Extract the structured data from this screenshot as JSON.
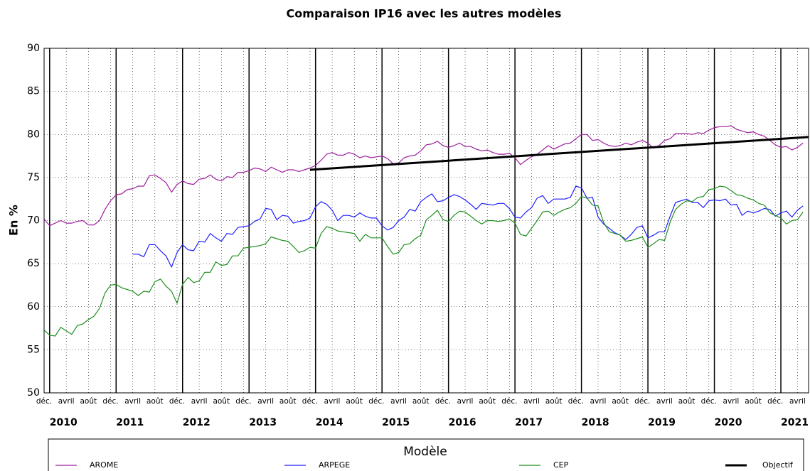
{
  "chart_data": {
    "type": "line",
    "title": "Comparaison IP16 avec les autres modèles",
    "y_label": "En %",
    "legend_title": "Modèle",
    "x": [
      "2009-12",
      "2010-01",
      "2010-02",
      "2010-03",
      "2010-04",
      "2010-05",
      "2010-06",
      "2010-07",
      "2010-08",
      "2010-09",
      "2010-10",
      "2010-11",
      "2010-12",
      "2011-01",
      "2011-02",
      "2011-03",
      "2011-04",
      "2011-05",
      "2011-06",
      "2011-07",
      "2011-08",
      "2011-09",
      "2011-10",
      "2011-11",
      "2011-12",
      "2012-01",
      "2012-02",
      "2012-03",
      "2012-04",
      "2012-05",
      "2012-06",
      "2012-07",
      "2012-08",
      "2012-09",
      "2012-10",
      "2012-11",
      "2012-12",
      "2013-01",
      "2013-02",
      "2013-03",
      "2013-04",
      "2013-05",
      "2013-06",
      "2013-07",
      "2013-08",
      "2013-09",
      "2013-10",
      "2013-11",
      "2013-12",
      "2014-01",
      "2014-02",
      "2014-03",
      "2014-04",
      "2014-05",
      "2014-06",
      "2014-07",
      "2014-08",
      "2014-09",
      "2014-10",
      "2014-11",
      "2014-12",
      "2015-01",
      "2015-02",
      "2015-03",
      "2015-04",
      "2015-05",
      "2015-06",
      "2015-07",
      "2015-08",
      "2015-09",
      "2015-10",
      "2015-11",
      "2015-12",
      "2016-01",
      "2016-02",
      "2016-03",
      "2016-04",
      "2016-05",
      "2016-06",
      "2016-07",
      "2016-08",
      "2016-09",
      "2016-10",
      "2016-11",
      "2016-12",
      "2017-01",
      "2017-02",
      "2017-03",
      "2017-04",
      "2017-05",
      "2017-06",
      "2017-07",
      "2017-08",
      "2017-09",
      "2017-10",
      "2017-11",
      "2017-12",
      "2018-01",
      "2018-02",
      "2018-03",
      "2018-04",
      "2018-05",
      "2018-06",
      "2018-07",
      "2018-08",
      "2018-09",
      "2018-10",
      "2018-11",
      "2018-12",
      "2019-01",
      "2019-02",
      "2019-03",
      "2019-04",
      "2019-05",
      "2019-06",
      "2019-07",
      "2019-08",
      "2019-09",
      "2019-10",
      "2019-11",
      "2019-12",
      "2020-01",
      "2020-02",
      "2020-03",
      "2020-04",
      "2020-05",
      "2020-06",
      "2020-07",
      "2020-08",
      "2020-09",
      "2020-10",
      "2020-11",
      "2020-12",
      "2021-01",
      "2021-02",
      "2021-03",
      "2021-04",
      "2021-05"
    ],
    "series": [
      {
        "name": "AROME",
        "color": "#9e1f9e",
        "width": 1.2,
        "values": [
          70.2,
          69.4,
          69.7,
          70.0,
          69.7,
          69.7,
          69.9,
          70.0,
          69.5,
          69.5,
          70.0,
          71.3,
          72.3,
          73.0,
          73.1,
          73.6,
          73.7,
          74.0,
          74.0,
          75.2,
          75.3,
          74.9,
          74.4,
          73.3,
          74.2,
          74.6,
          74.3,
          74.2,
          74.8,
          74.9,
          75.3,
          74.8,
          74.6,
          75.1,
          75.0,
          75.6,
          75.6,
          75.8,
          76.1,
          76.0,
          75.7,
          76.2,
          75.9,
          75.6,
          75.9,
          75.9,
          75.7,
          75.9,
          76.1,
          76.4,
          77.0,
          77.7,
          77.9,
          77.6,
          77.6,
          77.9,
          77.7,
          77.3,
          77.5,
          77.3,
          77.4,
          77.5,
          77.2,
          76.6,
          76.7,
          77.3,
          77.5,
          77.6,
          78.1,
          78.8,
          78.9,
          79.2,
          78.7,
          78.5,
          78.7,
          79.0,
          78.6,
          78.6,
          78.3,
          78.1,
          78.2,
          77.9,
          77.7,
          77.7,
          77.8,
          77.3,
          76.5,
          77.0,
          77.4,
          77.7,
          78.2,
          78.7,
          78.3,
          78.6,
          78.9,
          79.0,
          79.5,
          80.0,
          80.0,
          79.3,
          79.4,
          79.0,
          78.7,
          78.6,
          78.7,
          79.0,
          78.8,
          79.1,
          79.3,
          79.0,
          78.4,
          78.7,
          79.3,
          79.5,
          80.1,
          80.1,
          80.1,
          80.0,
          80.2,
          80.1,
          80.5,
          80.8,
          80.9,
          80.9,
          81.0,
          80.6,
          80.4,
          80.2,
          80.3,
          80.0,
          79.8,
          79.3,
          78.8,
          78.5,
          78.6,
          78.2,
          78.5,
          79.0
        ]
      },
      {
        "name": "ARPEGE",
        "color": "#1f1fff",
        "width": 1.2,
        "values": [
          null,
          null,
          null,
          null,
          null,
          null,
          null,
          null,
          null,
          null,
          null,
          null,
          null,
          null,
          null,
          null,
          66.1,
          66.1,
          65.8,
          67.2,
          67.2,
          66.5,
          65.9,
          64.6,
          66.3,
          67.2,
          66.6,
          66.5,
          67.6,
          67.5,
          68.5,
          68.0,
          67.6,
          68.5,
          68.4,
          69.2,
          69.3,
          69.4,
          69.9,
          70.2,
          71.4,
          71.3,
          70.1,
          70.6,
          70.5,
          69.7,
          69.9,
          70.0,
          70.3,
          71.6,
          72.2,
          71.9,
          71.2,
          70.0,
          70.6,
          70.6,
          70.4,
          70.9,
          70.5,
          70.3,
          70.3,
          69.4,
          68.9,
          69.2,
          70.0,
          70.4,
          71.3,
          71.1,
          72.2,
          72.7,
          73.1,
          72.2,
          72.3,
          72.7,
          73.0,
          72.8,
          72.4,
          71.9,
          71.3,
          72.0,
          71.9,
          71.8,
          72.0,
          72.0,
          71.4,
          70.4,
          70.3,
          71.0,
          71.5,
          72.6,
          72.9,
          72.0,
          72.5,
          72.5,
          72.5,
          72.7,
          74.0,
          73.8,
          72.6,
          72.7,
          70.4,
          69.6,
          69.1,
          68.6,
          68.3,
          67.8,
          68.4,
          69.2,
          69.4,
          68.0,
          68.3,
          68.7,
          68.7,
          70.5,
          72.1,
          72.3,
          72.5,
          72.1,
          72.1,
          71.5,
          72.3,
          72.4,
          72.3,
          72.5,
          71.8,
          71.9,
          70.6,
          71.1,
          70.9,
          71.1,
          71.4,
          71.3,
          70.5,
          70.9,
          71.1,
          70.4,
          71.2,
          71.7
        ]
      },
      {
        "name": "CEP",
        "color": "#1f8f1f",
        "width": 1.2,
        "values": [
          57.3,
          56.7,
          56.6,
          57.6,
          57.2,
          56.8,
          57.8,
          58.0,
          58.5,
          58.9,
          59.8,
          61.6,
          62.5,
          62.6,
          62.2,
          62.0,
          61.8,
          61.3,
          61.8,
          61.7,
          62.9,
          63.2,
          62.4,
          61.8,
          60.4,
          62.6,
          63.4,
          62.8,
          63.0,
          64.0,
          64.0,
          65.2,
          64.8,
          64.9,
          65.9,
          65.9,
          66.8,
          66.9,
          67.0,
          67.1,
          67.3,
          68.1,
          67.9,
          67.7,
          67.6,
          67.0,
          66.3,
          66.5,
          66.9,
          66.8,
          68.5,
          69.3,
          69.1,
          68.8,
          68.7,
          68.6,
          68.5,
          67.6,
          68.4,
          68.0,
          68.0,
          68.0,
          67.0,
          66.1,
          66.3,
          67.2,
          67.3,
          67.9,
          68.3,
          70.1,
          70.6,
          71.2,
          70.1,
          69.9,
          70.6,
          71.1,
          71.0,
          70.5,
          70.0,
          69.6,
          70.0,
          70.0,
          69.9,
          70.0,
          70.2,
          69.7,
          68.4,
          68.2,
          69.1,
          70.0,
          71.0,
          71.1,
          70.6,
          71.0,
          71.3,
          71.5,
          72.0,
          72.8,
          72.6,
          71.8,
          71.7,
          69.8,
          68.7,
          68.5,
          68.3,
          67.6,
          67.7,
          67.9,
          68.1,
          66.9,
          67.3,
          67.8,
          67.7,
          69.8,
          71.3,
          71.9,
          72.3,
          72.2,
          72.7,
          72.8,
          73.6,
          73.7,
          74.0,
          73.9,
          73.5,
          73.0,
          72.9,
          72.6,
          72.4,
          72.0,
          71.8,
          70.9,
          70.6,
          70.3,
          69.6,
          70.0,
          70.1,
          71.0
        ]
      },
      {
        "name": "Objectif",
        "color": "#000000",
        "width": 3,
        "x": [
          "2013-12",
          "2021-06"
        ],
        "values": [
          75.9,
          79.7
        ]
      }
    ],
    "xlim": [
      "2009-12",
      "2021-06"
    ],
    "xticks": [
      {
        "value": "2009-12",
        "label": "déc."
      },
      {
        "value": "2010-04",
        "label": "avril"
      },
      {
        "value": "2010-08",
        "label": "août"
      },
      {
        "value": "2010-12",
        "label": "déc."
      },
      {
        "value": "2011-04",
        "label": "avril"
      },
      {
        "value": "2011-08",
        "label": "août"
      },
      {
        "value": "2011-12",
        "label": "déc."
      },
      {
        "value": "2012-04",
        "label": "avril"
      },
      {
        "value": "2012-08",
        "label": "août"
      },
      {
        "value": "2012-12",
        "label": "déc."
      },
      {
        "value": "2013-04",
        "label": "avril"
      },
      {
        "value": "2013-08",
        "label": "août"
      },
      {
        "value": "2013-12",
        "label": "déc."
      },
      {
        "value": "2014-04",
        "label": "avril"
      },
      {
        "value": "2014-08",
        "label": "août"
      },
      {
        "value": "2014-12",
        "label": "déc."
      },
      {
        "value": "2015-04",
        "label": "avril"
      },
      {
        "value": "2015-08",
        "label": "août"
      },
      {
        "value": "2015-12",
        "label": "déc."
      },
      {
        "value": "2016-04",
        "label": "avril"
      },
      {
        "value": "2016-08",
        "label": "août"
      },
      {
        "value": "2016-12",
        "label": "déc."
      },
      {
        "value": "2017-04",
        "label": "avril"
      },
      {
        "value": "2017-08",
        "label": "août"
      },
      {
        "value": "2017-12",
        "label": "déc."
      },
      {
        "value": "2018-04",
        "label": "avril"
      },
      {
        "value": "2018-08",
        "label": "août"
      },
      {
        "value": "2018-12",
        "label": "déc."
      },
      {
        "value": "2019-04",
        "label": "avril"
      },
      {
        "value": "2019-08",
        "label": "août"
      },
      {
        "value": "2019-12",
        "label": "déc."
      },
      {
        "value": "2020-04",
        "label": "avril"
      },
      {
        "value": "2020-08",
        "label": "août"
      },
      {
        "value": "2020-12",
        "label": "déc."
      },
      {
        "value": "2021-04",
        "label": "avril"
      }
    ],
    "year_labels": [
      "2010",
      "2011",
      "2012",
      "2013",
      "2014",
      "2015",
      "2016",
      "2017",
      "2018",
      "2019",
      "2020",
      "2021"
    ],
    "ylim": [
      50,
      90
    ],
    "yticks": [
      50,
      55,
      60,
      65,
      70,
      75,
      80,
      85,
      90
    ],
    "grid": true
  }
}
